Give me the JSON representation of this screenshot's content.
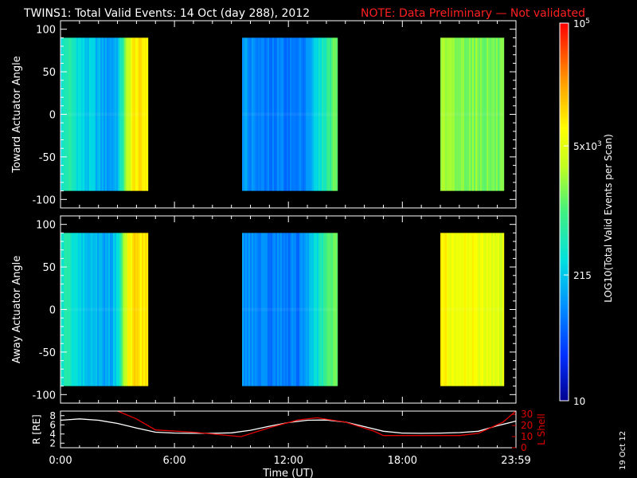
{
  "title": "TWINS1: Total Valid Events: 14 Oct (day 288), 2012",
  "note": "NOTE: Data Preliminary — Not validated",
  "date_stamp": "19 Oct 12",
  "colors": {
    "note": "#ff2020",
    "l_shell": "#e00000",
    "r_trace": "#ffffff",
    "frame": "#ffffff"
  },
  "chart_data": [
    {
      "type": "heatmap",
      "name": "toward",
      "ylabel": "Toward Actuator Angle",
      "ylim": [
        -110,
        110
      ],
      "yticks": [
        100,
        50,
        0,
        -50,
        -100
      ],
      "data_yrange": [
        -90,
        90
      ],
      "xlim": [
        0,
        23.983
      ],
      "segments": [
        {
          "t0": 0.0,
          "t1": 4.55,
          "profile": [
            [
              0.0,
              0.38
            ],
            [
              0.3,
              0.45
            ],
            [
              0.6,
              0.42
            ],
            [
              1.0,
              0.37
            ],
            [
              1.3,
              0.33
            ],
            [
              1.6,
              0.34
            ],
            [
              2.0,
              0.3
            ],
            [
              2.4,
              0.27
            ],
            [
              2.7,
              0.28
            ],
            [
              3.0,
              0.32
            ],
            [
              3.2,
              0.45
            ],
            [
              3.5,
              0.62
            ],
            [
              3.8,
              0.74
            ],
            [
              4.55,
              0.74
            ]
          ]
        },
        {
          "t0": 9.55,
          "t1": 14.55,
          "profile": [
            [
              9.55,
              0.28
            ],
            [
              10.0,
              0.25
            ],
            [
              10.5,
              0.22
            ],
            [
              11.0,
              0.21
            ],
            [
              11.5,
              0.23
            ],
            [
              12.0,
              0.22
            ],
            [
              12.5,
              0.21
            ],
            [
              13.0,
              0.27
            ],
            [
              13.5,
              0.36
            ],
            [
              13.8,
              0.42
            ],
            [
              14.2,
              0.5
            ],
            [
              14.55,
              0.56
            ]
          ]
        },
        {
          "t0": 20.0,
          "t1": 23.3,
          "profile": [
            [
              20.0,
              0.6
            ],
            [
              20.5,
              0.57
            ],
            [
              21.0,
              0.56
            ],
            [
              21.5,
              0.57
            ],
            [
              22.0,
              0.56
            ],
            [
              22.5,
              0.55
            ],
            [
              23.3,
              0.54
            ]
          ]
        }
      ]
    },
    {
      "type": "heatmap",
      "name": "away",
      "ylabel": "Away Actuator Angle",
      "ylim": [
        -110,
        110
      ],
      "yticks": [
        100,
        50,
        0,
        -50,
        -100
      ],
      "data_yrange": [
        -90,
        90
      ],
      "xlim": [
        0,
        23.983
      ],
      "segments": [
        {
          "t0": 0.0,
          "t1": 4.55,
          "profile": [
            [
              0.0,
              0.4
            ],
            [
              0.3,
              0.44
            ],
            [
              0.6,
              0.4
            ],
            [
              1.0,
              0.35
            ],
            [
              1.3,
              0.32
            ],
            [
              1.6,
              0.33
            ],
            [
              2.0,
              0.3
            ],
            [
              2.4,
              0.28
            ],
            [
              2.7,
              0.3
            ],
            [
              3.0,
              0.38
            ],
            [
              3.2,
              0.55
            ],
            [
              3.5,
              0.7
            ],
            [
              3.8,
              0.76
            ],
            [
              4.55,
              0.75
            ]
          ]
        },
        {
          "t0": 9.55,
          "t1": 14.55,
          "profile": [
            [
              9.55,
              0.27
            ],
            [
              10.0,
              0.25
            ],
            [
              10.5,
              0.23
            ],
            [
              11.0,
              0.22
            ],
            [
              11.5,
              0.24
            ],
            [
              12.0,
              0.23
            ],
            [
              12.5,
              0.22
            ],
            [
              13.0,
              0.3
            ],
            [
              13.5,
              0.38
            ],
            [
              13.8,
              0.45
            ],
            [
              14.2,
              0.52
            ],
            [
              14.55,
              0.57
            ]
          ]
        },
        {
          "t0": 20.0,
          "t1": 23.3,
          "profile": [
            [
              20.0,
              0.73
            ],
            [
              20.5,
              0.71
            ],
            [
              21.0,
              0.7
            ],
            [
              21.5,
              0.71
            ],
            [
              22.0,
              0.69
            ],
            [
              22.5,
              0.68
            ],
            [
              23.3,
              0.66
            ]
          ]
        }
      ]
    },
    {
      "type": "line",
      "name": "orbit",
      "ylabel_left": "R [RE]",
      "ylabel_right": "L Shell",
      "ylim_left": [
        1,
        9
      ],
      "yticks_left": [
        2,
        4,
        6,
        8
      ],
      "ylim_right": [
        0,
        33
      ],
      "yticks_right": [
        0,
        10,
        20,
        30
      ],
      "xlabel": "Time (UT)",
      "xticks": [
        0,
        6,
        12,
        18,
        23.983
      ],
      "xticklabels": [
        "0:00",
        "6:00",
        "12:00",
        "18:00",
        "23:59"
      ],
      "series": [
        {
          "name": "R",
          "axis": "left",
          "x": [
            0,
            1,
            2,
            3,
            4,
            5,
            6,
            7,
            8,
            9,
            10,
            11,
            12,
            13,
            14,
            15,
            16,
            17,
            18,
            19,
            20,
            21,
            22,
            23,
            23.98
          ],
          "y": [
            7.0,
            7.3,
            7.0,
            6.3,
            5.3,
            4.4,
            4.2,
            4.15,
            4.15,
            4.25,
            4.8,
            5.7,
            6.5,
            7.0,
            7.05,
            6.6,
            5.6,
            4.6,
            4.2,
            4.15,
            4.2,
            4.3,
            4.6,
            5.8,
            6.8
          ]
        },
        {
          "name": "L Shell",
          "axis": "right",
          "x": [
            3.0,
            4.0,
            5.0,
            7.0,
            9.5,
            11.0,
            12.5,
            13.5,
            15.0,
            16.5,
            17.0,
            21.0,
            22.0,
            23.3,
            23.98
          ],
          "y": [
            33,
            26,
            16,
            14,
            10,
            18,
            25,
            27,
            23,
            15,
            11,
            11,
            13,
            23,
            33
          ]
        }
      ]
    }
  ],
  "colorbar": {
    "label": "LOG10(Total Valid Events per Scan)",
    "range": [
      10,
      100000
    ],
    "ticks": [
      {
        "value": 100000,
        "label": "10",
        "sup": "5"
      },
      {
        "value": 5000,
        "label": "5x10",
        "sup": "3"
      },
      {
        "value": 215,
        "label": "215"
      },
      {
        "value": 10,
        "label": "10"
      }
    ]
  }
}
